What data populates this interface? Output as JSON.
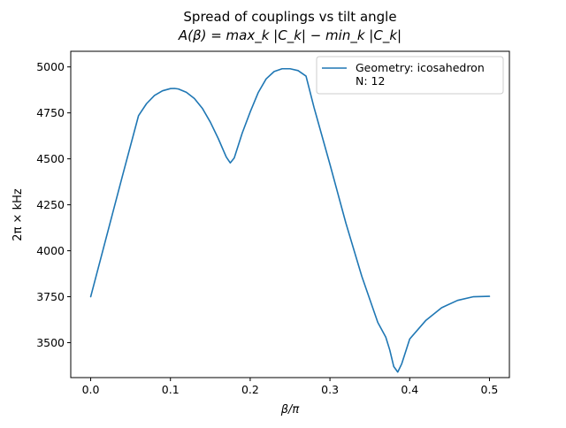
{
  "chart_data": {
    "type": "line",
    "title": "Spread of couplings vs tilt angle",
    "subtitle": "A(β) = max_k |C_k| − min_k |C_k|",
    "xlabel": "β/π",
    "ylabel": "2π × kHz",
    "xlim": [
      -0.025,
      0.525
    ],
    "ylim": [
      3310,
      5085
    ],
    "xticks": [
      0.0,
      0.1,
      0.2,
      0.3,
      0.4,
      0.5
    ],
    "xtick_labels": [
      "0.0",
      "0.1",
      "0.2",
      "0.3",
      "0.4",
      "0.5"
    ],
    "yticks": [
      3500,
      3750,
      4000,
      4250,
      4500,
      4750,
      5000
    ],
    "ytick_labels": [
      "3500",
      "3750",
      "4000",
      "4250",
      "4500",
      "4750",
      "5000"
    ],
    "grid": false,
    "legend_position": "upper right",
    "series": [
      {
        "name": "Geometry: icosahedron\nN: 12",
        "color": "#1f77b4",
        "x": [
          0.0,
          0.02,
          0.04,
          0.06,
          0.07,
          0.08,
          0.09,
          0.1,
          0.105,
          0.11,
          0.12,
          0.13,
          0.14,
          0.15,
          0.16,
          0.17,
          0.175,
          0.18,
          0.19,
          0.2,
          0.21,
          0.22,
          0.23,
          0.24,
          0.25,
          0.26,
          0.27,
          0.28,
          0.3,
          0.32,
          0.34,
          0.36,
          0.37,
          0.375,
          0.38,
          0.385,
          0.39,
          0.4,
          0.42,
          0.44,
          0.46,
          0.48,
          0.5
        ],
        "y": [
          3750,
          4080,
          4410,
          4735,
          4800,
          4845,
          4870,
          4882,
          4883,
          4880,
          4862,
          4828,
          4775,
          4700,
          4610,
          4510,
          4478,
          4505,
          4640,
          4755,
          4860,
          4935,
          4975,
          4990,
          4990,
          4980,
          4950,
          4780,
          4470,
          4150,
          3860,
          3610,
          3530,
          3460,
          3370,
          3340,
          3385,
          3520,
          3620,
          3690,
          3730,
          3750,
          3752
        ]
      }
    ]
  }
}
